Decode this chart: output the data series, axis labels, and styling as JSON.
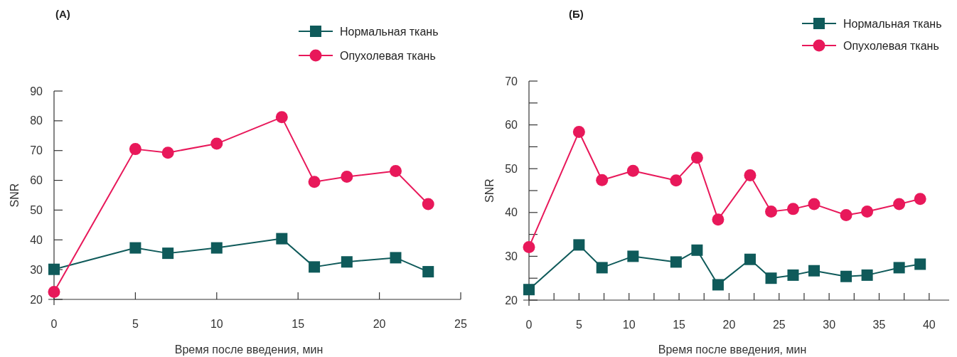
{
  "chart_data": [
    {
      "type": "line",
      "title": "(А)",
      "xlabel": "Время после введения, мин",
      "ylabel": "SNR",
      "x": [
        0,
        5,
        7,
        10,
        14,
        16,
        18,
        21,
        23
      ],
      "xlim": [
        0,
        25
      ],
      "xticks": [
        0,
        5,
        10,
        15,
        20,
        25
      ],
      "ylim": [
        20,
        90
      ],
      "yticks": [
        20,
        30,
        40,
        50,
        60,
        70,
        80,
        90
      ],
      "grid": false,
      "legend": "top right",
      "series": [
        {
          "name": "Нормальная ткань",
          "color": "#0f5a5a",
          "marker": "square",
          "values": [
            30.1,
            37.3,
            35.5,
            37.3,
            40.4,
            30.9,
            32.6,
            34,
            29.3
          ]
        },
        {
          "name": "Опухолевая ткань",
          "color": "#e8185a",
          "marker": "circle",
          "values": [
            22.5,
            70.5,
            69.3,
            72.3,
            81.2,
            59.5,
            61.2,
            63.1,
            52
          ]
        }
      ]
    },
    {
      "type": "line",
      "title": "(Б)",
      "xlabel": "Время после введения, мин",
      "ylabel": "SNR",
      "x": [
        0,
        5,
        7.3,
        10.4,
        14.7,
        16.8,
        18.9,
        22.1,
        24.2,
        26.4,
        28.5,
        31.7,
        33.8,
        37,
        39.1
      ],
      "xlim": [
        0,
        42
      ],
      "xticks": [
        0,
        {
          "value": 2.5,
          "label": null
        },
        5,
        {
          "value": 7.5,
          "label": null
        },
        10,
        {
          "value": 12.5,
          "label": null
        },
        15,
        {
          "value": 17.5,
          "label": null
        },
        20,
        {
          "value": 22.5,
          "label": null
        },
        25,
        {
          "value": 27.5,
          "label": null
        },
        30,
        {
          "value": 32.5,
          "label": null
        },
        35,
        {
          "value": 37.5,
          "label": null
        },
        40
      ],
      "ylim": [
        20,
        70
      ],
      "yticks": [
        20,
        {
          "value": 25,
          "label": null
        },
        30,
        {
          "value": 35,
          "label": null
        },
        40,
        {
          "value": 45,
          "label": null
        },
        50,
        {
          "value": 55,
          "label": null
        },
        60,
        {
          "value": 65,
          "label": null
        },
        70
      ],
      "grid": false,
      "legend": "top right",
      "series": [
        {
          "name": "Нормальная ткань",
          "color": "#0f5a5a",
          "marker": "square",
          "values": [
            22.4,
            32.6,
            27.4,
            30,
            28.7,
            31.4,
            23.5,
            29.3,
            25,
            25.7,
            26.7,
            25.4,
            25.7,
            27.4,
            28.2
          ]
        },
        {
          "name": "Опухолевая ткань",
          "color": "#e8185a",
          "marker": "circle",
          "values": [
            32.1,
            58.4,
            47.4,
            49.5,
            47.3,
            52.5,
            38.4,
            48.5,
            40.2,
            40.8,
            41.9,
            39.4,
            40.2,
            41.9,
            43.1
          ]
        }
      ]
    }
  ]
}
